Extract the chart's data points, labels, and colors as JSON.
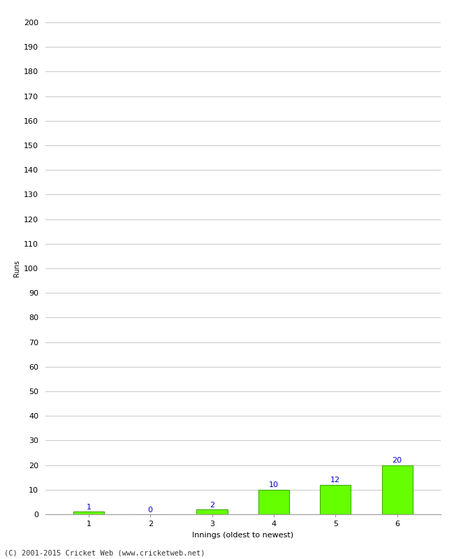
{
  "xlabel": "Innings (oldest to newest)",
  "ylabel": "Runs",
  "categories": [
    "1",
    "2",
    "3",
    "4",
    "5",
    "6"
  ],
  "values": [
    1,
    0,
    2,
    10,
    12,
    20
  ],
  "bar_color": "#66ff00",
  "bar_edge_color": "#44aa00",
  "label_color": "#0000cc",
  "ylim": [
    0,
    200
  ],
  "yticks": [
    0,
    10,
    20,
    30,
    40,
    50,
    60,
    70,
    80,
    90,
    100,
    110,
    120,
    130,
    140,
    150,
    160,
    170,
    180,
    190,
    200
  ],
  "grid_color": "#cccccc",
  "background_color": "#ffffff",
  "footer_text": "(C) 2001-2015 Cricket Web (www.cricketweb.net)",
  "label_fontsize": 8,
  "axis_fontsize": 8,
  "ylabel_fontsize": 7,
  "footer_fontsize": 7.5
}
